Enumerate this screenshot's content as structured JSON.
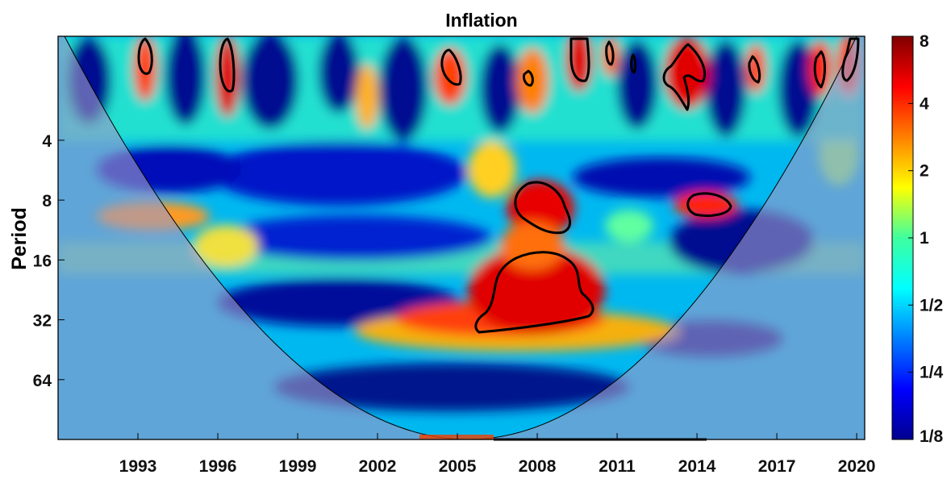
{
  "chart_data": {
    "type": "heatmap",
    "subtype": "wavelet-power-spectrum",
    "title": "Inflation",
    "xlabel": "",
    "ylabel": "Period",
    "x_ticks": [
      1993,
      1996,
      1999,
      2002,
      2005,
      2008,
      2011,
      2014,
      2017,
      2020
    ],
    "xlim": [
      1990,
      2020.3
    ],
    "y_ticks": [
      4,
      8,
      16,
      32,
      64
    ],
    "y_scale": "log2",
    "y_reversed": true,
    "ylim": [
      1.2,
      128
    ],
    "colorbar": {
      "scale": "log2",
      "ticks": [
        "1/8",
        "1/4",
        "1/2",
        "1",
        "2",
        "4",
        "8"
      ],
      "tick_values": [
        0.125,
        0.25,
        0.5,
        1,
        2,
        4,
        8
      ],
      "colormap": "jet",
      "placement": "right"
    },
    "features": {
      "cone_of_influence": "shaded outside",
      "significance_contours": "black, 5% level"
    },
    "significant_regions": [
      {
        "t_center": 1993.4,
        "period_min": 1.3,
        "period_max": 2.6
      },
      {
        "t_center": 1996.4,
        "period_min": 1.3,
        "period_max": 3.4
      },
      {
        "t_center": 2004.2,
        "period_min": 1.9,
        "period_max": 2.9
      },
      {
        "t_center": 2007.3,
        "period_min": 2.4,
        "period_max": 2.9
      },
      {
        "t_center": 2009.1,
        "period_min": 1.2,
        "period_max": 2.9
      },
      {
        "t_center": 2010.2,
        "period_min": 1.3,
        "period_max": 2.0
      },
      {
        "t_center": 2011.1,
        "period_min": 1.7,
        "period_max": 2.5
      },
      {
        "t_center": 2013.2,
        "period_min": 1.5,
        "period_max": 4.2
      },
      {
        "t_center": 2015.4,
        "period_min": 1.8,
        "period_max": 3.0
      },
      {
        "t_center": 2017.9,
        "period_min": 1.6,
        "period_max": 3.3
      },
      {
        "t_center": 2019.3,
        "period_min": 1.2,
        "period_max": 3.0
      },
      {
        "t_center": 2007.8,
        "period_min": 10.0,
        "period_max": 15.5
      },
      {
        "t_center": 2013.9,
        "period_min": 10.5,
        "period_max": 13.0
      },
      {
        "t_center": 2007.8,
        "period_min": 19.5,
        "period_max": 43.0
      }
    ]
  }
}
